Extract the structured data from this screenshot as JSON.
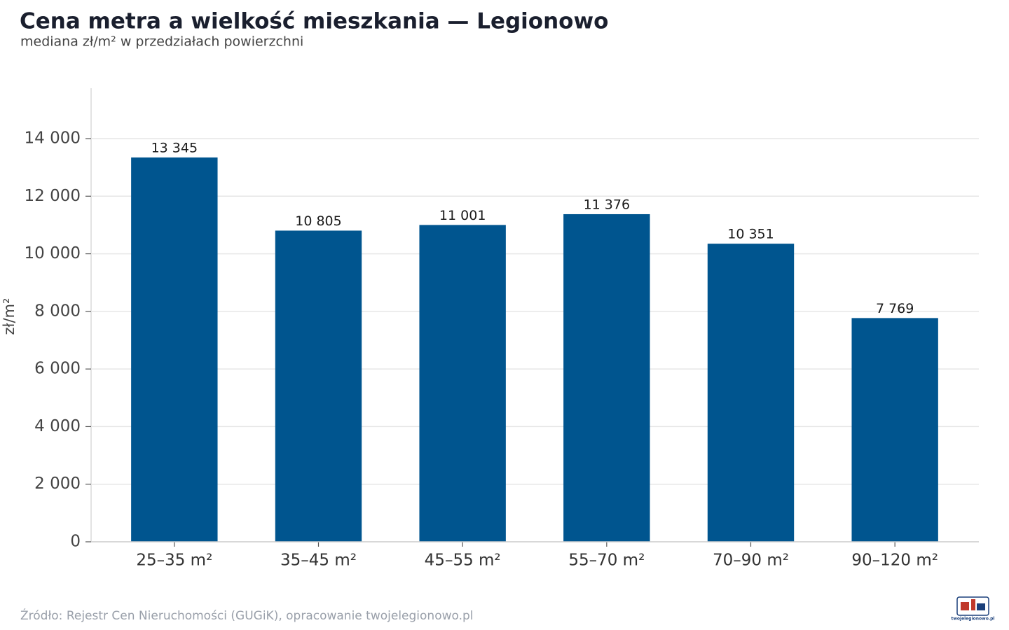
{
  "chart_data": {
    "type": "bar",
    "title": "Cena metra a wielkość mieszkania — Legionowo",
    "subtitle": "mediana zł/m² w przedziałach powierzchni",
    "y_label": "zł/m²",
    "source": "Źródło: Rejestr Cen Nieruchomości (GUGiK), opracowanie twojelegionowo.pl",
    "logo_text": "twojelegionowo.pl",
    "categories": [
      "25–35 m²",
      "35–45 m²",
      "45–55 m²",
      "55–70 m²",
      "70–90 m²",
      "90–120 m²"
    ],
    "values": [
      13345,
      10805,
      11001,
      11376,
      10351,
      7769
    ],
    "value_labels": [
      "13 345",
      "10 805",
      "11 001",
      "11 376",
      "10 351",
      "7 769"
    ],
    "color": "#00558f",
    "ylim": [
      0,
      15750
    ],
    "yticks": [
      0,
      {
        "value": 2000,
        "label": "2 000"
      },
      {
        "value": 4000,
        "label": "4 000"
      },
      {
        "value": 6000,
        "label": "6 000"
      },
      {
        "value": 8000,
        "label": "8 000"
      },
      {
        "value": 10000,
        "label": "10 000"
      },
      {
        "value": 12000,
        "label": "12 000"
      },
      {
        "value": 14000,
        "label": "14 000"
      }
    ],
    "grid": true
  }
}
